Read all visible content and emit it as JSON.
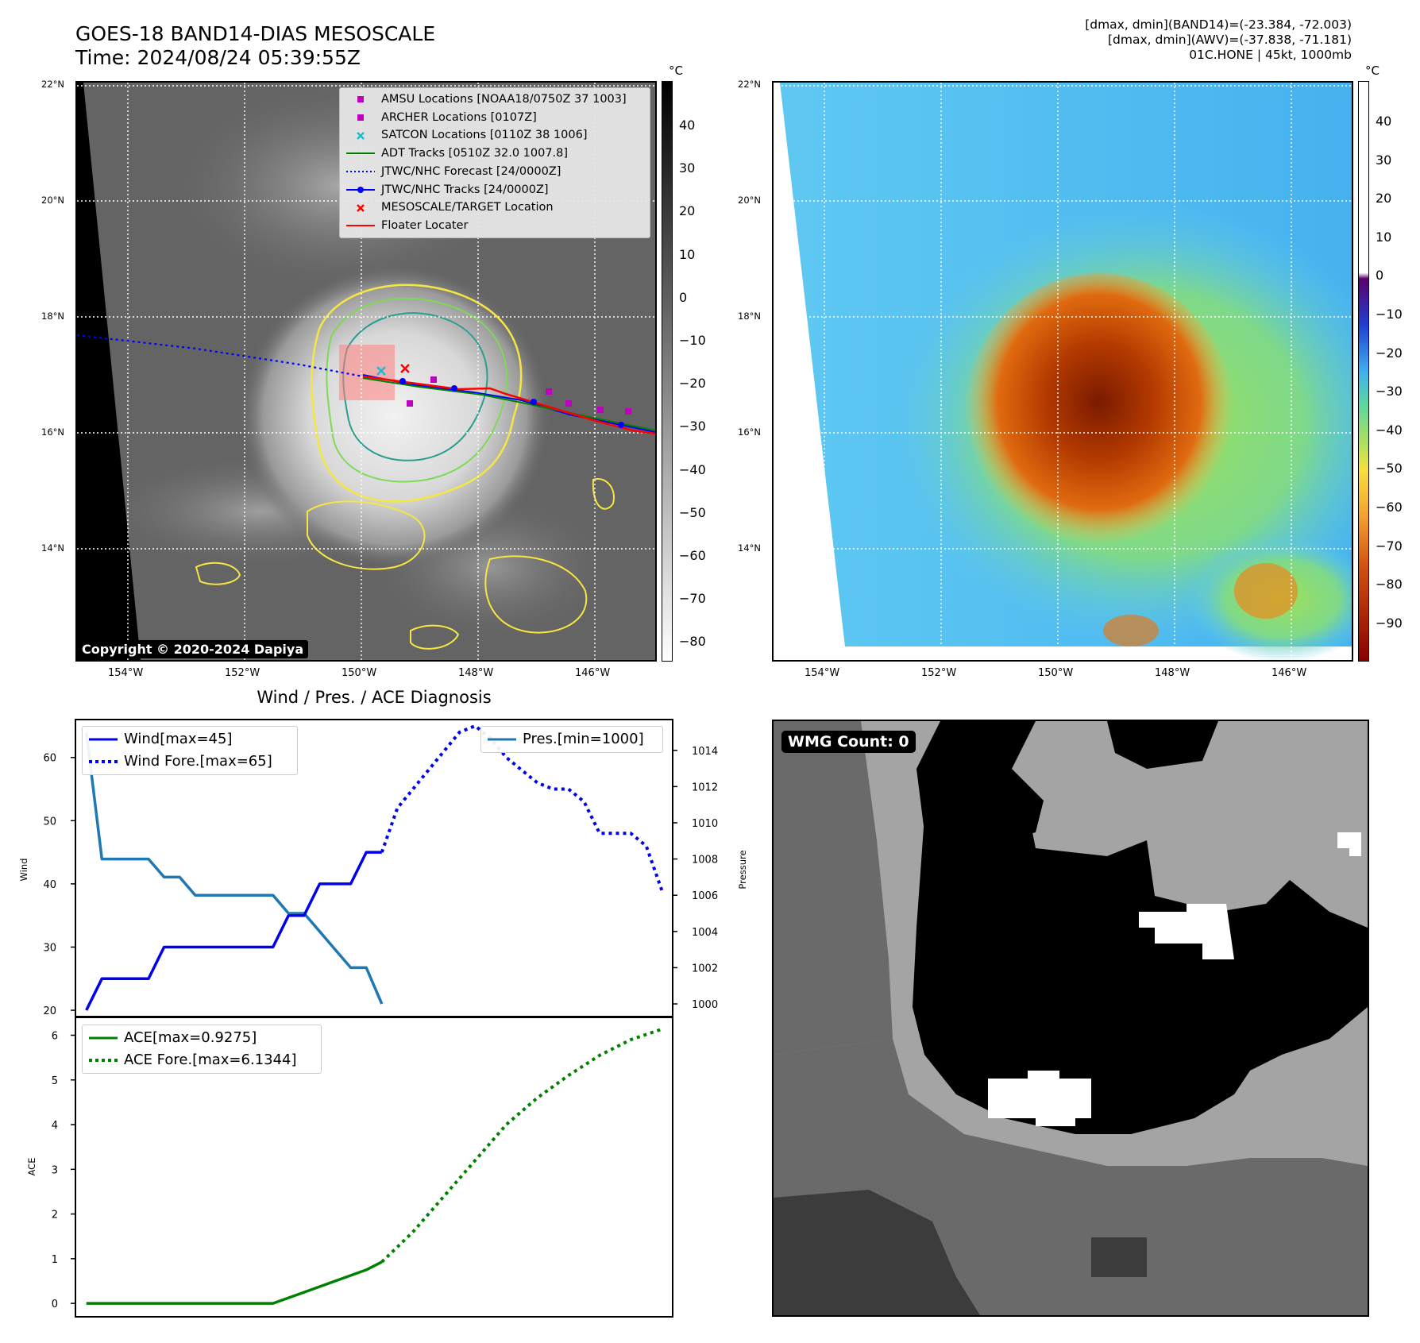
{
  "header": {
    "title_line1": "GOES-18 BAND14-DIAS MESOSCALE",
    "title_line2": "Time: 2024/08/24 05:39:55Z",
    "info_line1": "[dmax, dmin](BAND14)=(-23.384, -72.003)",
    "info_line2": "[dmax, dmin](AWV)=(-37.838, -71.181)",
    "info_line3": "01C.HONE | 45kt, 1000mb"
  },
  "map_axes": {
    "lat_labels": [
      "22°N",
      "20°N",
      "18°N",
      "16°N",
      "14°N"
    ],
    "lon_labels": [
      "154°W",
      "152°W",
      "150°W",
      "148°W",
      "146°W"
    ]
  },
  "ir_panel": {
    "colorbar_unit": "°C",
    "colorbar_ticks": [
      "40",
      "30",
      "20",
      "10",
      "0",
      "−10",
      "−20",
      "−30",
      "−40",
      "−50",
      "−60",
      "−70",
      "−80"
    ],
    "copyright": "Copyright © 2020-2024 Dapiya",
    "legend": [
      {
        "label": "AMSU Locations [NOAA18/0750Z 37 1003]",
        "color": "#bf00bf",
        "symbol": "square"
      },
      {
        "label": "ARCHER Locations [0107Z]",
        "color": "#bf00bf",
        "symbol": "square"
      },
      {
        "label": "SATCON Locations [0110Z 38 1006]",
        "color": "#17becf",
        "symbol": "x"
      },
      {
        "label": "ADT Tracks [0510Z 32.0 1007.8]",
        "color": "#008000",
        "symbol": "line"
      },
      {
        "label": "JTWC/NHC Forecast [24/0000Z]",
        "color": "#0000ff",
        "symbol": "dotted"
      },
      {
        "label": "JTWC/NHC Tracks [24/0000Z]",
        "color": "#0000ff",
        "symbol": "line-dot"
      },
      {
        "label": "MESOSCALE/TARGET Location",
        "color": "#ff0000",
        "symbol": "x"
      },
      {
        "label": "Floater Locater",
        "color": "#ff0000",
        "symbol": "line"
      }
    ]
  },
  "wv_panel": {
    "colorbar_unit": "°C",
    "colorbar_ticks": [
      "40",
      "30",
      "20",
      "10",
      "0",
      "−10",
      "−20",
      "−30",
      "−40",
      "−50",
      "−60",
      "−70",
      "−80",
      "−90"
    ]
  },
  "wmg_panel": {
    "label": "WMG Count: 0"
  },
  "chart_data": [
    {
      "type": "line",
      "title": "Wind / Pres. / ACE Diagnosis",
      "ylabel": "Wind",
      "ylabel_right": "Pressure",
      "x": [
        0,
        1,
        2,
        3,
        4,
        5,
        6,
        7,
        8,
        9,
        10,
        11,
        12,
        13,
        14,
        15,
        16,
        17,
        18,
        19,
        20,
        21,
        22,
        23,
        24,
        25,
        26,
        27,
        28,
        29,
        30,
        31,
        32,
        33,
        34,
        35,
        36,
        37
      ],
      "ylim": [
        19,
        66
      ],
      "ylim_right": [
        999.3,
        1015.7
      ],
      "yticks": [
        20,
        30,
        40,
        50,
        60
      ],
      "yticks_right": [
        1000,
        1002,
        1004,
        1006,
        1008,
        1010,
        1012,
        1014
      ],
      "series": [
        {
          "name": "Wind[max=45]",
          "color": "#0000ee",
          "style": "solid",
          "axis": "left",
          "x": [
            0,
            1,
            2,
            3,
            4,
            5,
            6,
            7,
            8,
            9,
            10,
            11,
            12,
            13,
            14,
            15,
            16,
            17,
            18,
            19
          ],
          "values": [
            20,
            25,
            25,
            25,
            25,
            30,
            30,
            30,
            30,
            30,
            30,
            30,
            30,
            35,
            35,
            40,
            40,
            40,
            45,
            45
          ]
        },
        {
          "name": "Wind Fore.[max=65]",
          "color": "#0000ee",
          "style": "dotted",
          "axis": "left",
          "x": [
            19,
            20,
            21,
            22,
            23,
            24,
            25,
            26,
            27,
            28,
            29,
            30,
            31,
            32,
            33,
            34,
            35,
            36,
            37
          ],
          "values": [
            45,
            52,
            55,
            58,
            61,
            64,
            65,
            63,
            60,
            58,
            56,
            55,
            55,
            53,
            48,
            48,
            48,
            46,
            39
          ]
        },
        {
          "name": "Pres.[min=1000]",
          "color": "#1f77b4",
          "style": "solid",
          "axis": "right",
          "x": [
            0,
            1,
            2,
            3,
            4,
            5,
            6,
            7,
            8,
            9,
            10,
            11,
            12,
            13,
            14,
            15,
            16,
            17,
            18,
            19
          ],
          "values": [
            1015,
            1008,
            1008,
            1008,
            1008,
            1007,
            1007,
            1006,
            1006,
            1006,
            1006,
            1006,
            1006,
            1005,
            1005,
            1004,
            1003,
            1002,
            1002,
            1000
          ]
        }
      ]
    },
    {
      "type": "line",
      "ylabel": "ACE",
      "ylim": [
        -0.3,
        6.4
      ],
      "yticks": [
        0,
        1,
        2,
        3,
        4,
        5,
        6
      ],
      "series": [
        {
          "name": "ACE[max=0.9275]",
          "color": "#008000",
          "style": "solid",
          "x": [
            0,
            2,
            4,
            6,
            8,
            10,
            12,
            14,
            16,
            18,
            19
          ],
          "values": [
            0,
            0,
            0,
            0,
            0,
            0,
            0,
            0.25,
            0.5,
            0.75,
            0.9275
          ]
        },
        {
          "name": "ACE Fore.[max=6.1344]",
          "color": "#008000",
          "style": "dotted",
          "x": [
            19,
            21,
            23,
            25,
            27,
            29,
            31,
            33,
            35,
            37
          ],
          "values": [
            0.9275,
            1.6,
            2.4,
            3.2,
            4.0,
            4.6,
            5.1,
            5.55,
            5.9,
            6.1344
          ]
        }
      ]
    }
  ]
}
